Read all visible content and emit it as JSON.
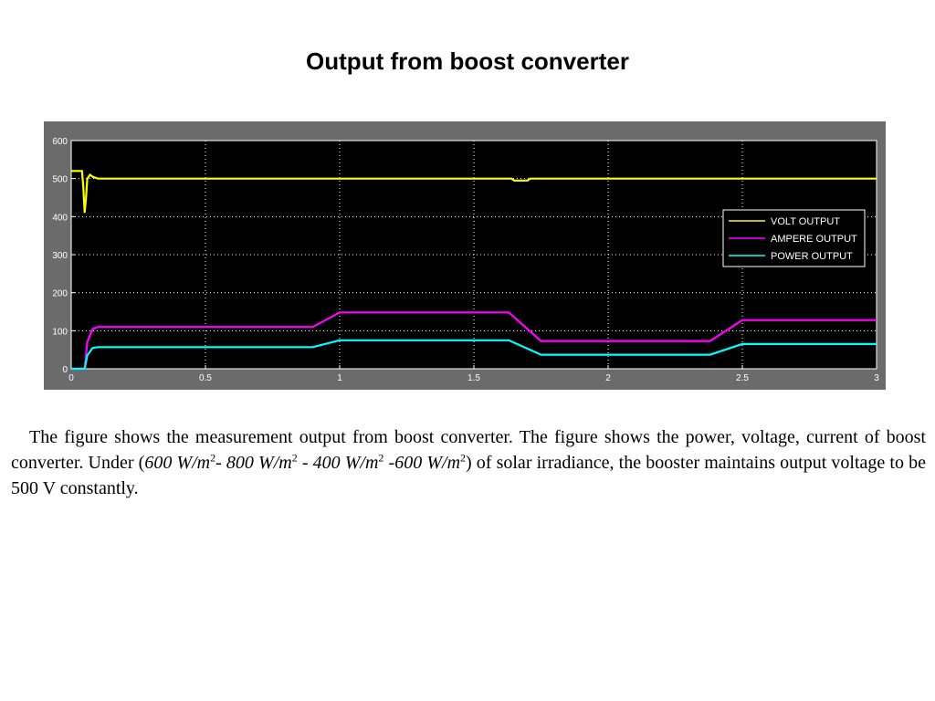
{
  "slide": {
    "title": "Output from boost converter"
  },
  "caption": {
    "intro": "The figure shows the measurement output from boost converter. The figure shows the power, voltage, current of boost converter. Under (",
    "irr1": "600 W/m",
    "sep1": "- ",
    "irr2": "800 W/m",
    "sep2": " - ",
    "irr3": "400 W/m",
    "sep3": " -",
    "irr4": "600 W/m",
    "sup": "2",
    "outro": ") of solar irradiance, the booster maintains output voltage to be 500 V constantly."
  },
  "colors": {
    "frame": "#6b6b6b",
    "plot_bg": "#000000",
    "grid": "#ffffff",
    "volt": "#ffff00",
    "ampere": "#ff00ff",
    "power": "#00ffff"
  },
  "chart_data": {
    "type": "line",
    "title": "",
    "xlabel": "",
    "ylabel": "",
    "xlim": [
      0,
      3
    ],
    "ylim": [
      0,
      600
    ],
    "x_ticks": [
      "0",
      "0.5",
      "1",
      "1.5",
      "2",
      "2.5",
      "3"
    ],
    "y_ticks": [
      "0",
      "100",
      "200",
      "300",
      "400",
      "500",
      "600"
    ],
    "x_tick_values": [
      0,
      0.5,
      1,
      1.5,
      2,
      2.5,
      3
    ],
    "y_tick_values": [
      0,
      100,
      200,
      300,
      400,
      500,
      600
    ],
    "grid": true,
    "legend_position": "right",
    "series": [
      {
        "name": "VOLT OUTPUT",
        "color": "#ffff00",
        "x": [
          0,
          0.04,
          0.045,
          0.05,
          0.055,
          0.06,
          0.07,
          0.08,
          0.1,
          0.13,
          0.2,
          1.64,
          1.65,
          1.7,
          1.71,
          3
        ],
        "y": [
          520,
          520,
          480,
          410,
          450,
          500,
          510,
          505,
          500,
          500,
          500,
          500,
          495,
          495,
          500,
          500
        ]
      },
      {
        "name": "AMPERE OUTPUT",
        "color": "#ff00ff",
        "x": [
          0,
          0.05,
          0.06,
          0.08,
          0.1,
          0.9,
          1.0,
          1.63,
          1.75,
          2.38,
          2.5,
          3
        ],
        "y": [
          0,
          0,
          70,
          105,
          110,
          110,
          148,
          148,
          73,
          73,
          128,
          128
        ]
      },
      {
        "name": "POWER OUTPUT",
        "color": "#00ffff",
        "x": [
          0,
          0.05,
          0.06,
          0.08,
          0.1,
          0.9,
          1.0,
          1.63,
          1.75,
          2.38,
          2.5,
          3
        ],
        "y": [
          0,
          0,
          35,
          55,
          57,
          57,
          75,
          75,
          37,
          37,
          65,
          65
        ]
      }
    ]
  }
}
